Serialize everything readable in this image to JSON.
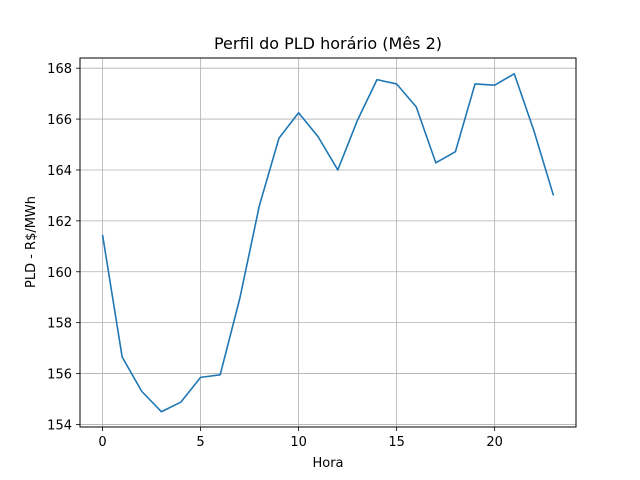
{
  "chart_data": {
    "type": "line",
    "title": "Perfil do PLD horário (Mês 2)",
    "xlabel": "Hora",
    "ylabel": "PLD - R$/MWh",
    "xlim": [
      -1.15,
      24.15
    ],
    "ylim": [
      153.9,
      168.4
    ],
    "x_ticks": [
      0,
      5,
      10,
      15,
      20
    ],
    "y_ticks": [
      154,
      156,
      158,
      160,
      162,
      164,
      166,
      168
    ],
    "grid": true,
    "line_color": "#1f77b4",
    "series": [
      {
        "x": [
          0,
          1,
          2,
          3,
          4,
          5,
          6,
          7,
          8,
          9,
          10,
          11,
          12,
          13,
          14,
          15,
          16,
          17,
          18,
          19,
          20,
          21,
          22,
          23
        ],
        "values": [
          161.45,
          156.65,
          155.3,
          154.5,
          154.88,
          155.85,
          155.95,
          158.95,
          162.6,
          165.25,
          166.25,
          165.3,
          164.0,
          165.95,
          167.55,
          167.38,
          166.48,
          164.28,
          164.72,
          167.38,
          167.33,
          167.78,
          165.55,
          163.0
        ]
      }
    ]
  }
}
